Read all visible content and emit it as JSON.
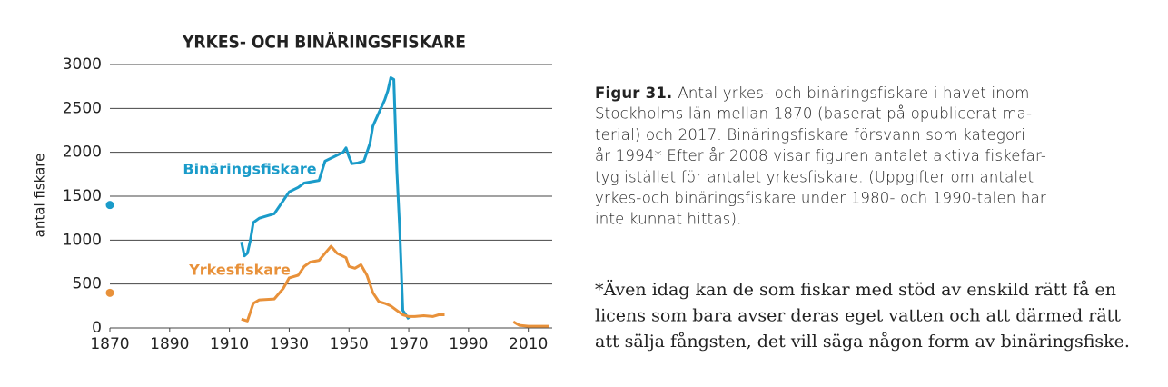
{
  "chart_data": {
    "type": "line",
    "title": "YRKES- OCH BINÄRINGSFISKARE",
    "y_label": "antal fiskare",
    "xlim": [
      1870,
      2018
    ],
    "xticks": [
      1870,
      1890,
      1910,
      1930,
      1950,
      1970,
      1990,
      2010
    ],
    "ylim": [
      0,
      3000
    ],
    "yticks": [
      0,
      500,
      1000,
      1500,
      2000,
      2500,
      3000
    ],
    "grid": true,
    "series": [
      {
        "name": "Binäringsfiskare",
        "color": "#1a9bc9",
        "x": [
          1870,
          1914,
          1915,
          1916,
          1917,
          1918,
          1920,
          1925,
          1928,
          1930,
          1933,
          1935,
          1940,
          1942,
          1945,
          1948,
          1949,
          1950,
          1951,
          1953,
          1955,
          1957,
          1958,
          1960,
          1962,
          1963,
          1964,
          1965,
          1966,
          1967,
          1968,
          1969,
          1970
        ],
        "values": [
          1400,
          980,
          820,
          850,
          1000,
          1200,
          1250,
          1300,
          1450,
          1550,
          1600,
          1650,
          1680,
          1900,
          1950,
          2000,
          2050,
          1950,
          1870,
          1880,
          1900,
          2100,
          2300,
          2450,
          2600,
          2700,
          2850,
          2830,
          1800,
          1100,
          200,
          150,
          100
        ]
      },
      {
        "name": "Yrkesfiskare",
        "color": "#e8913a",
        "x": [
          1870,
          1914,
          1916,
          1918,
          1920,
          1925,
          1928,
          1930,
          1933,
          1935,
          1937,
          1940,
          1942,
          1944,
          1946,
          1949,
          1950,
          1952,
          1954,
          1956,
          1958,
          1960,
          1962,
          1964,
          1966,
          1968,
          1970,
          1972,
          1975,
          1978,
          1980,
          1982,
          2005,
          2007,
          2010,
          2013,
          2017
        ],
        "values": [
          400,
          100,
          80,
          280,
          320,
          330,
          450,
          570,
          600,
          700,
          750,
          770,
          850,
          930,
          850,
          800,
          700,
          680,
          720,
          600,
          400,
          300,
          280,
          250,
          200,
          150,
          130,
          130,
          140,
          130,
          150,
          150,
          70,
          30,
          20,
          20,
          20
        ]
      }
    ]
  },
  "caption": {
    "label": "Figur 31.",
    "lines": [
      "Antal yrkes- och binäringsfiskare i havet inom",
      "Stockholms län mellan 1870 (baserat på opublicerat ma-",
      "terial) och 2017. Binäringsfiskare försvann som kategori",
      "år 1994* Efter år 2008 visar figuren antalet aktiva fiskefar-",
      "tyg istället för antalet yrkesfiskare. (Uppgifter om antalet",
      "yrkes-och binäringsfiskare under 1980- och 1990-talen har",
      "inte kunnat hittas)."
    ]
  },
  "footnote": {
    "lines": [
      "*Även idag kan de som fiskar med stöd av enskild rätt få en",
      "licens som bara avser deras eget vatten och att därmed rätt",
      "att sälja fångsten, det vill säga någon form av binäringsfiske."
    ]
  }
}
